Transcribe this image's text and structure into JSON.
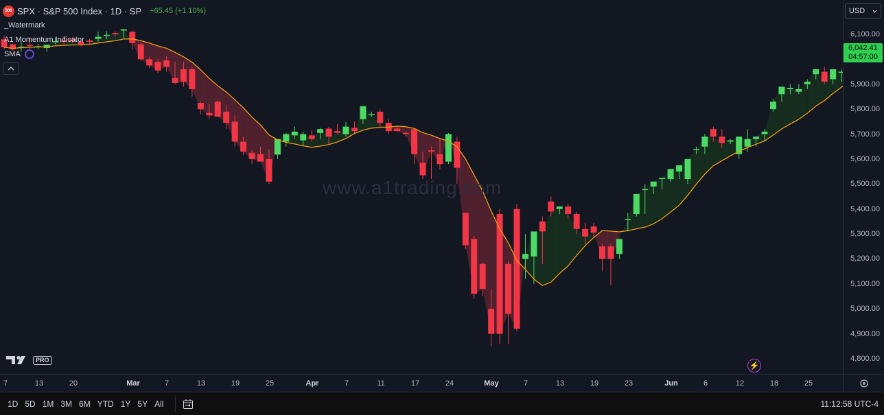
{
  "symbol": {
    "badge": "500",
    "title": "SPX · S&P 500 Index · 1D · SP",
    "change": "+65.45 (+1.10%)"
  },
  "indicators": [
    "_Watermark",
    "A1 Momentum Indicator",
    "SMA"
  ],
  "watermark": "www.a1trading.com",
  "currency": "USD",
  "last_price": {
    "price": "6,042.41",
    "countdown": "04:57:00"
  },
  "logo": {
    "pro": "PRO"
  },
  "price_ticks": [
    "6,100.00",
    "6,000.00",
    "5,900.00",
    "5,800.00",
    "5,700.00",
    "5,600.00",
    "5,500.00",
    "5,400.00",
    "5,300.00",
    "5,200.00",
    "5,100.00",
    "5,000.00",
    "4,900.00",
    "4,800.00"
  ],
  "time_ticks": [
    {
      "label": "7",
      "major": false
    },
    {
      "label": "13",
      "major": false
    },
    {
      "label": "20",
      "major": false
    },
    {
      "label": "Mar",
      "major": true
    },
    {
      "label": "7",
      "major": false
    },
    {
      "label": "13",
      "major": false
    },
    {
      "label": "19",
      "major": false
    },
    {
      "label": "25",
      "major": false
    },
    {
      "label": "Apr",
      "major": true
    },
    {
      "label": "7",
      "major": false
    },
    {
      "label": "11",
      "major": false
    },
    {
      "label": "17",
      "major": false
    },
    {
      "label": "24",
      "major": false
    },
    {
      "label": "May",
      "major": true
    },
    {
      "label": "7",
      "major": false
    },
    {
      "label": "13",
      "major": false
    },
    {
      "label": "19",
      "major": false
    },
    {
      "label": "23",
      "major": false
    },
    {
      "label": "Jun",
      "major": true
    },
    {
      "label": "6",
      "major": false
    },
    {
      "label": "12",
      "major": false
    },
    {
      "label": "18",
      "major": false
    },
    {
      "label": "25",
      "major": false
    }
  ],
  "ranges": [
    "1D",
    "5D",
    "1M",
    "3M",
    "6M",
    "YTD",
    "1Y",
    "5Y",
    "All"
  ],
  "clock": "11:12:58 UTC-4",
  "colors": {
    "up": "#4cd964",
    "down": "#f23645",
    "sma": "#f39c12",
    "bg": "#131722",
    "fill_bear": "#5a2330",
    "fill_bull": "#16301f"
  },
  "chart_data": {
    "type": "candlestick",
    "title": "SPX · S&P 500 Index · 1D · SP",
    "ylim": [
      4760,
      6160
    ],
    "overlay": "SMA",
    "candles": [
      [
        6080,
        6095,
        6048,
        6040
      ],
      [
        6060,
        6062,
        6040,
        6035
      ],
      [
        6050,
        6072,
        6050,
        6030
      ],
      [
        6058,
        6088,
        6055,
        6040
      ],
      [
        6050,
        6062,
        6052,
        6040
      ],
      [
        6045,
        6058,
        6058,
        6030
      ],
      [
        6068,
        6088,
        6072,
        6060
      ],
      [
        6075,
        6092,
        6070,
        6060
      ],
      [
        6080,
        6088,
        6072,
        6065
      ],
      [
        6070,
        6080,
        6060,
        6050
      ],
      [
        6075,
        6082,
        6070,
        6060
      ],
      [
        6082,
        6110,
        6090,
        6070
      ],
      [
        6095,
        6112,
        6098,
        6080
      ],
      [
        6105,
        6112,
        6100,
        6090
      ],
      [
        6115,
        6120,
        6120,
        6085
      ],
      [
        6110,
        6115,
        6065,
        6040
      ],
      [
        6060,
        6068,
        6000,
        5995
      ],
      [
        6000,
        6010,
        5975,
        5965
      ],
      [
        5990,
        6000,
        5955,
        5945
      ],
      [
        5995,
        6012,
        5970,
        5950
      ],
      [
        5925,
        5990,
        5905,
        5900
      ],
      [
        5960,
        5990,
        5910,
        5890
      ],
      [
        5960,
        5970,
        5880,
        5850
      ],
      [
        5825,
        5830,
        5800,
        5780
      ],
      [
        5785,
        5820,
        5775,
        5760
      ],
      [
        5830,
        5835,
        5770,
        5770
      ],
      [
        5790,
        5815,
        5745,
        5720
      ],
      [
        5750,
        5775,
        5670,
        5650
      ],
      [
        5670,
        5690,
        5630,
        5615
      ],
      [
        5625,
        5635,
        5600,
        5580
      ],
      [
        5620,
        5650,
        5590,
        5590
      ],
      [
        5600,
        5640,
        5510,
        5500
      ],
      [
        5618,
        5680,
        5680,
        5600
      ],
      [
        5670,
        5705,
        5700,
        5650
      ],
      [
        5695,
        5730,
        5710,
        5680
      ],
      [
        5675,
        5710,
        5700,
        5650
      ],
      [
        5695,
        5715,
        5680,
        5670
      ],
      [
        5705,
        5725,
        5720,
        5680
      ],
      [
        5722,
        5730,
        5690,
        5660
      ],
      [
        5712,
        5740,
        5705,
        5700
      ],
      [
        5700,
        5748,
        5730,
        5690
      ],
      [
        5725,
        5752,
        5712,
        5700
      ],
      [
        5760,
        5800,
        5812,
        5740
      ],
      [
        5778,
        5790,
        5780,
        5770
      ],
      [
        5790,
        5800,
        5745,
        5730
      ],
      [
        5745,
        5760,
        5712,
        5700
      ],
      [
        5722,
        5730,
        5712,
        5710
      ],
      [
        5705,
        5710,
        5700,
        5690
      ],
      [
        5720,
        5725,
        5620,
        5580
      ],
      [
        5585,
        5630,
        5535,
        5520
      ],
      [
        5635,
        5650,
        5630,
        5520
      ],
      [
        5620,
        5680,
        5580,
        5560
      ],
      [
        5590,
        5705,
        5700,
        5580
      ],
      [
        5670,
        5690,
        5565,
        5500
      ],
      [
        5385,
        5385,
        5255,
        5240
      ],
      [
        5280,
        5290,
        5060,
        5040
      ],
      [
        5180,
        5185,
        5080,
        5050
      ],
      [
        5000,
        5080,
        4900,
        4850
      ],
      [
        5380,
        5400,
        4900,
        4860
      ],
      [
        5180,
        5190,
        4980,
        4860
      ],
      [
        5400,
        5420,
        4920,
        4910
      ],
      [
        5200,
        5300,
        5220,
        5120
      ],
      [
        5210,
        5220,
        5310,
        5100
      ],
      [
        5350,
        5370,
        5310,
        5180
      ],
      [
        5430,
        5450,
        5390,
        5370
      ],
      [
        5400,
        5410,
        5410,
        5380
      ],
      [
        5410,
        5420,
        5380,
        5360
      ],
      [
        5380,
        5390,
        5320,
        5300
      ],
      [
        5320,
        5345,
        5290,
        5260
      ],
      [
        5330,
        5345,
        5305,
        5290
      ],
      [
        5250,
        5260,
        5200,
        5150
      ],
      [
        5250,
        5260,
        5200,
        5095
      ],
      [
        5220,
        5240,
        5280,
        5200
      ],
      [
        5360,
        5385,
        5360,
        5310
      ],
      [
        5380,
        5450,
        5460,
        5370
      ],
      [
        5480,
        5500,
        5480,
        5380
      ],
      [
        5490,
        5500,
        5510,
        5460
      ],
      [
        5520,
        5520,
        5525,
        5480
      ],
      [
        5520,
        5550,
        5560,
        5510
      ],
      [
        5550,
        5570,
        5575,
        5520
      ],
      [
        5520,
        5560,
        5600,
        5500
      ],
      [
        5640,
        5650,
        5640,
        5620
      ],
      [
        5650,
        5700,
        5690,
        5620
      ],
      [
        5720,
        5730,
        5690,
        5670
      ],
      [
        5690,
        5720,
        5665,
        5645
      ],
      [
        5670,
        5680,
        5675,
        5660
      ],
      [
        5620,
        5680,
        5690,
        5600
      ],
      [
        5650,
        5720,
        5680,
        5630
      ],
      [
        5680,
        5690,
        5690,
        5650
      ],
      [
        5700,
        5720,
        5710,
        5670
      ],
      [
        5800,
        5840,
        5830,
        5790
      ],
      [
        5860,
        5880,
        5890,
        5830
      ],
      [
        5880,
        5900,
        5885,
        5860
      ],
      [
        5870,
        5900,
        5880,
        5860
      ],
      [
        5900,
        5920,
        5910,
        5880
      ],
      [
        5940,
        5960,
        5960,
        5920
      ],
      [
        5950,
        5970,
        5910,
        5900
      ],
      [
        5920,
        5960,
        5960,
        5900
      ],
      [
        5950,
        5960,
        5950,
        5910
      ],
      [
        5940,
        5950,
        5930,
        5920
      ],
      [
        5900,
        5910,
        5900,
        5880
      ],
      [
        5860,
        5880,
        5830,
        5820
      ],
      [
        5800,
        5810,
        5800,
        5770
      ],
      [
        5820,
        5840,
        5825,
        5800
      ],
      [
        5880,
        5930,
        5930,
        5870
      ],
      [
        5935,
        5945,
        5910,
        5870
      ],
      [
        5950,
        5960,
        5940,
        5920
      ],
      [
        5940,
        5950,
        5920,
        5910
      ],
      [
        5900,
        5920,
        5920,
        5860
      ],
      [
        5920,
        5940,
        5900,
        5860
      ],
      [
        5990,
        6000,
        5980,
        5970
      ],
      [
        5995,
        6010,
        6000,
        5985
      ],
      [
        5990,
        6000,
        6000,
        5985
      ],
      [
        6010,
        6020,
        6010,
        5975
      ],
      [
        6010,
        6030,
        6025,
        6005
      ],
      [
        6020,
        6030,
        6030,
        6010
      ],
      [
        6030,
        6040,
        6040,
        6020
      ],
      [
        6050,
        6060,
        6060,
        6040
      ],
      [
        6060,
        6060,
        6030,
        6020
      ],
      [
        6030,
        6040,
        6040,
        6020
      ],
      [
        5990,
        6005,
        5990,
        5985
      ],
      [
        6030,
        6055,
        6042,
        6020
      ]
    ]
  }
}
